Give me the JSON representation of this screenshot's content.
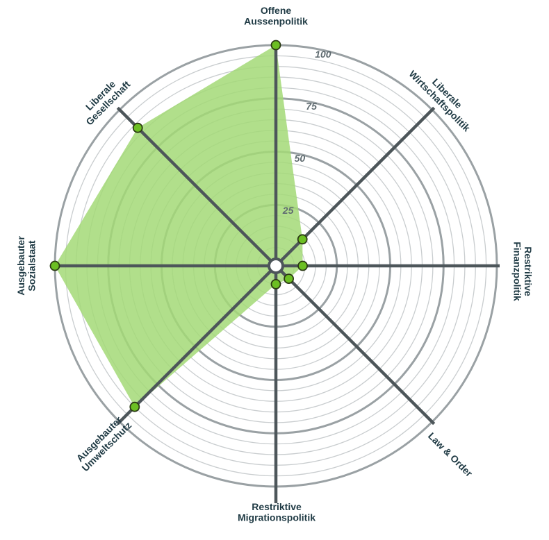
{
  "chart_data": {
    "type": "radar",
    "title": "",
    "range": [
      0,
      100
    ],
    "ticks": [
      25,
      50,
      75,
      100
    ],
    "minor_step": 5,
    "grid": true,
    "fill_color": "#a3d977",
    "point_color": "#6cbf23",
    "axis_color": "#4d565a",
    "label_color": "#1f3a44",
    "axes": [
      {
        "lines": [
          "Offene",
          "Aussenpolitik"
        ]
      },
      {
        "lines": [
          "Liberale",
          "Wirtschaftspolitik"
        ]
      },
      {
        "lines": [
          "Restriktive",
          "Finanzpolitik"
        ]
      },
      {
        "lines": [
          "Law & Order"
        ]
      },
      {
        "lines": [
          "Restriktive",
          "Migrationspolitik"
        ]
      },
      {
        "lines": [
          "Ausgebauter",
          "Umweltschutz"
        ]
      },
      {
        "lines": [
          "Ausgebauter",
          "Sozialstaat"
        ]
      },
      {
        "lines": [
          "Liberale",
          "Gesellschaft"
        ]
      }
    ],
    "values": [
      100,
      14,
      9,
      5,
      5,
      90,
      100,
      88
    ]
  }
}
